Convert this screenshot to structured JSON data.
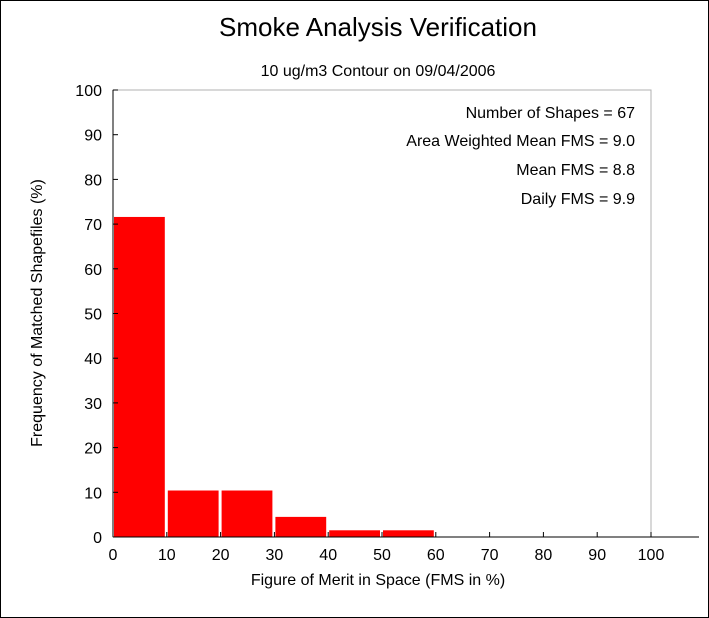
{
  "chart_data": {
    "type": "bar",
    "title": "Smoke Analysis Verification",
    "subtitle": "10 ug/m3 Contour on 09/04/2006",
    "xlabel": "Figure of Merit in Space (FMS in %)",
    "ylabel": "Frequency of Matched Shapefiles (%)",
    "xlim": [
      0,
      100
    ],
    "ylim": [
      0,
      100
    ],
    "xticks": [
      0,
      10,
      20,
      30,
      40,
      50,
      60,
      70,
      80,
      90,
      100
    ],
    "yticks": [
      0,
      10,
      20,
      30,
      40,
      50,
      60,
      70,
      80,
      90,
      100
    ],
    "bins": [
      {
        "start": 0,
        "end": 10,
        "value": 71.6
      },
      {
        "start": 10,
        "end": 20,
        "value": 10.4
      },
      {
        "start": 20,
        "end": 30,
        "value": 10.4
      },
      {
        "start": 30,
        "end": 40,
        "value": 4.5
      },
      {
        "start": 40,
        "end": 50,
        "value": 1.5
      },
      {
        "start": 50,
        "end": 60,
        "value": 1.5
      },
      {
        "start": 60,
        "end": 70,
        "value": 0
      },
      {
        "start": 70,
        "end": 80,
        "value": 0
      },
      {
        "start": 80,
        "end": 90,
        "value": 0
      },
      {
        "start": 90,
        "end": 100,
        "value": 0
      }
    ],
    "bar_color": "#ff0000",
    "grid": false,
    "legend": "none",
    "annotations": [
      "Number of Shapes = 67",
      "Area Weighted Mean FMS = 9.0",
      "Mean FMS = 8.8",
      "Daily FMS = 9.9"
    ]
  }
}
